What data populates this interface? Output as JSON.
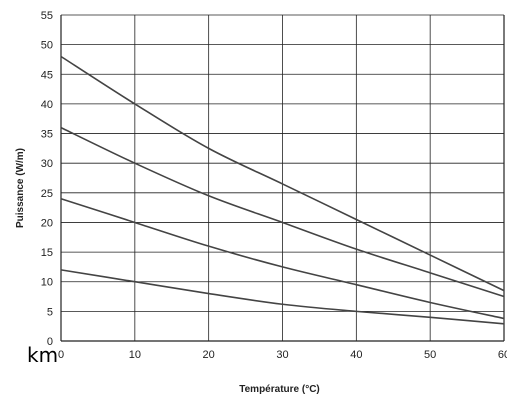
{
  "fragment_text": "km",
  "chart_data": {
    "type": "line",
    "title": "",
    "xlabel": "Température (°C)",
    "ylabel": "Puissance (W/m)",
    "xlim": [
      0,
      60
    ],
    "ylim": [
      0,
      55
    ],
    "x_ticks": [
      0,
      10,
      20,
      30,
      40,
      50,
      60
    ],
    "y_ticks": [
      0,
      5,
      10,
      15,
      20,
      25,
      30,
      35,
      40,
      45,
      50,
      55
    ],
    "grid": true,
    "line_color": "#444444",
    "grid_color": "#222222",
    "series": [
      {
        "x": [
          0,
          10,
          20,
          30,
          40,
          50,
          60
        ],
        "values": [
          48,
          40,
          32.5,
          26.5,
          20.5,
          14.5,
          8.5
        ]
      },
      {
        "x": [
          0,
          10,
          20,
          30,
          40,
          50,
          60
        ],
        "values": [
          36,
          30,
          24.5,
          20,
          15.5,
          11.5,
          7.5
        ]
      },
      {
        "x": [
          0,
          10,
          20,
          30,
          40,
          50,
          60
        ],
        "values": [
          24,
          20,
          16,
          12.5,
          9.5,
          6.5,
          3.8
        ]
      },
      {
        "x": [
          0,
          10,
          20,
          30,
          40,
          50,
          60
        ],
        "values": [
          12,
          10,
          8,
          6.2,
          5,
          4,
          2.9
        ]
      }
    ]
  }
}
